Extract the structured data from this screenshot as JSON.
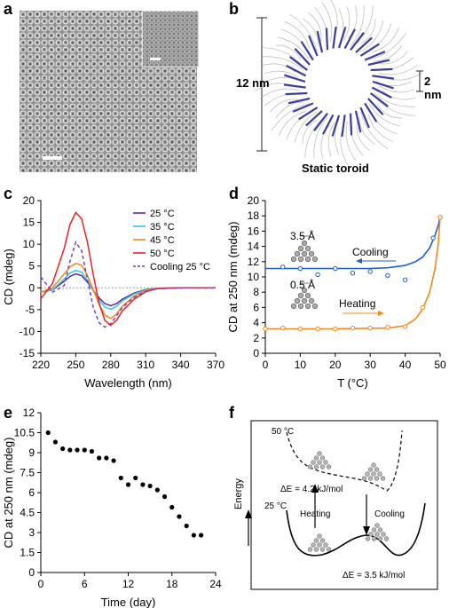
{
  "panels": {
    "a": {
      "letter": "a"
    },
    "b": {
      "letter": "b",
      "dim_outer": "12 nm",
      "dim_inner": "2 nm",
      "caption": "Static toroid"
    },
    "c": {
      "letter": "c"
    },
    "d": {
      "letter": "d",
      "annot_top": "3.5 Å",
      "annot_bottom": "0.5 Å",
      "cooling_label": "Cooling",
      "heating_label": "Heating"
    },
    "e": {
      "letter": "e"
    },
    "f": {
      "letter": "f",
      "temp_high": "50 °C",
      "temp_low": "25 °C",
      "delta_high": "ΔE = 4.2 kJ/mol",
      "delta_low": "ΔE = 3.5 kJ/mol",
      "heating": "Heating",
      "cooling": "Cooling",
      "energy": "Energy"
    }
  },
  "colors": {
    "purple": "#5b2a9e",
    "cyan": "#31c8d8",
    "orange": "#f08a1c",
    "red": "#e8242a",
    "blue": "#1f5fc8",
    "dash": "#7b3fc4",
    "toroid": "#3b3f98"
  },
  "chart_data": [
    {
      "type": "line",
      "panel": "c",
      "xlabel": "Wavelength (nm)",
      "ylabel": "CD (mdeg)",
      "xlim": [
        220,
        370
      ],
      "ylim": [
        -15,
        20
      ],
      "xticks": [
        220,
        250,
        280,
        310,
        340,
        370
      ],
      "yticks": [
        -15,
        -10,
        -5,
        0,
        5,
        10,
        15,
        20
      ],
      "x": [
        220,
        230,
        240,
        245,
        250,
        255,
        260,
        265,
        270,
        275,
        280,
        285,
        290,
        300,
        310,
        320,
        340,
        370
      ],
      "series": [
        {
          "name": "25 °C",
          "values": [
            -1,
            -0.5,
            1.5,
            2.6,
            3.2,
            2.8,
            1.3,
            -0.6,
            -2.3,
            -3.6,
            -4.1,
            -3.6,
            -2.6,
            -1.2,
            -0.4,
            -0.1,
            0,
            0
          ]
        },
        {
          "name": "35 °C",
          "values": [
            -1,
            -0.4,
            2,
            3.4,
            4,
            3.6,
            1.7,
            -0.6,
            -2.8,
            -4.4,
            -4.9,
            -4.2,
            -3,
            -1.4,
            -0.5,
            -0.1,
            0,
            0
          ]
        },
        {
          "name": "45 °C",
          "values": [
            -1,
            0,
            3.2,
            4.8,
            5.6,
            5.2,
            2.8,
            -0.4,
            -3.8,
            -6.2,
            -7,
            -6,
            -4.2,
            -1.9,
            -0.6,
            -0.1,
            0,
            0
          ]
        },
        {
          "name": "50 °C",
          "values": [
            -2.5,
            1,
            9,
            14.5,
            17.3,
            15.8,
            10.5,
            3,
            -3.5,
            -7.5,
            -8.6,
            -7.4,
            -5.3,
            -2.6,
            -0.9,
            -0.2,
            0,
            0
          ]
        },
        {
          "name": "Cooling 25 °C",
          "values": [
            2.5,
            -1,
            0.5,
            6,
            10.5,
            8.5,
            2,
            -4.5,
            -8,
            -9,
            -8.2,
            -6.4,
            -4.5,
            -2.2,
            -0.8,
            -0.2,
            0,
            0
          ]
        }
      ]
    },
    {
      "type": "scatter",
      "panel": "d",
      "xlabel": "T (°C)",
      "ylabel": "CD at 250 nm (mdeg)",
      "xlim": [
        0,
        50
      ],
      "ylim": [
        0,
        20
      ],
      "xticks": [
        0,
        10,
        20,
        30,
        40,
        50
      ],
      "yticks": [
        0,
        2,
        4,
        6,
        8,
        10,
        12,
        14,
        16,
        18,
        20
      ],
      "series": [
        {
          "name": "Cooling",
          "points": [
            [
              5,
              11.3
            ],
            [
              10,
              11.1
            ],
            [
              15,
              10.3
            ],
            [
              20,
              11.1
            ],
            [
              25,
              10.5
            ],
            [
              30,
              10.7
            ],
            [
              35,
              10.2
            ],
            [
              40,
              9.6
            ],
            [
              48,
              15.1
            ],
            [
              50,
              17.8
            ]
          ],
          "fit": [
            [
              0,
              11.1
            ],
            [
              10,
              11.1
            ],
            [
              20,
              11.1
            ],
            [
              30,
              11.1
            ],
            [
              35,
              11.2
            ],
            [
              40,
              11.5
            ],
            [
              43,
              12
            ],
            [
              45,
              12.6
            ],
            [
              47,
              13.8
            ],
            [
              48.5,
              15.4
            ],
            [
              49.5,
              16.8
            ],
            [
              50,
              17.8
            ]
          ]
        },
        {
          "name": "Heating",
          "points": [
            [
              0,
              3.2
            ],
            [
              5,
              3.3
            ],
            [
              10,
              3.2
            ],
            [
              15,
              3.2
            ],
            [
              20,
              3.2
            ],
            [
              25,
              3.3
            ],
            [
              30,
              3.3
            ],
            [
              35,
              3.4
            ],
            [
              40,
              3.5
            ],
            [
              45,
              6
            ],
            [
              50,
              17.8
            ]
          ],
          "fit": [
            [
              0,
              3.2
            ],
            [
              20,
              3.2
            ],
            [
              35,
              3.3
            ],
            [
              40,
              3.6
            ],
            [
              43,
              4.5
            ],
            [
              45,
              5.8
            ],
            [
              47,
              8
            ],
            [
              48.5,
              11
            ],
            [
              49.5,
              14.5
            ],
            [
              50,
              17.8
            ]
          ]
        }
      ]
    },
    {
      "type": "scatter",
      "panel": "e",
      "xlabel": "Time (day)",
      "ylabel": "CD at 250 nm (mdeg)",
      "xlim": [
        0,
        24
      ],
      "ylim": [
        0,
        12
      ],
      "xticks": [
        0,
        6,
        12,
        18,
        24
      ],
      "yticks": [
        0,
        1.5,
        3,
        4.5,
        6,
        7.5,
        9,
        10.5,
        12
      ],
      "tick_labels_y": [
        "0",
        "1.5",
        "3",
        "4.5",
        "6",
        "7.5",
        "9",
        "10.5",
        "12"
      ],
      "points": [
        [
          1,
          10.5
        ],
        [
          2,
          9.8
        ],
        [
          3,
          9.3
        ],
        [
          4,
          9.2
        ],
        [
          5,
          9.2
        ],
        [
          6,
          9.2
        ],
        [
          7,
          9.1
        ],
        [
          8,
          8.6
        ],
        [
          9,
          8.6
        ],
        [
          10,
          8.4
        ],
        [
          11,
          7.1
        ],
        [
          12,
          6.6
        ],
        [
          13,
          7.1
        ],
        [
          14,
          6.6
        ],
        [
          15,
          6.5
        ],
        [
          16,
          6.2
        ],
        [
          17,
          5.7
        ],
        [
          18,
          4.9
        ],
        [
          19,
          4.2
        ],
        [
          20,
          3.5
        ],
        [
          21,
          2.8
        ],
        [
          22,
          2.8
        ]
      ]
    }
  ]
}
